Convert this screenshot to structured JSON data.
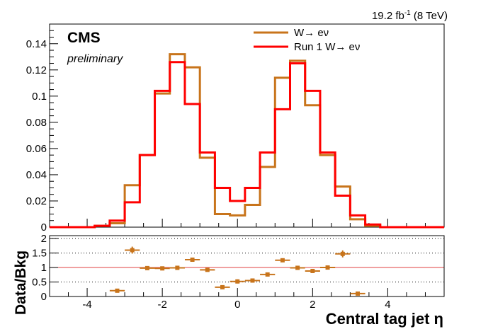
{
  "header": {
    "lumi_prefix": "19.2 fb",
    "lumi_exp": "-1",
    "lumi_suffix": " (8 TeV)"
  },
  "branding": {
    "experiment": "CMS",
    "status": "preliminary"
  },
  "colors": {
    "series_orange": "#c8741b",
    "series_red": "#ff0000",
    "ratio_line": "#e04040",
    "markers": "#c8741b"
  },
  "chart_data": [
    {
      "type": "line",
      "title": "",
      "xlabel": "",
      "ylabel": "",
      "xlim": [
        -5.0,
        5.5
      ],
      "ylim": [
        0,
        0.155
      ],
      "x_ticks": [
        -4,
        -2,
        0,
        2,
        4
      ],
      "y_ticks": [
        0,
        0.02,
        0.04,
        0.06,
        0.08,
        0.1,
        0.12,
        0.14
      ],
      "y_tick_labels": [
        "0",
        "0.02",
        "0.04",
        "0.06",
        "0.08",
        "0.1",
        "0.12",
        "0.14"
      ],
      "grid": false,
      "legend_position": "top-right",
      "bin_edges": [
        -5.0,
        -4.6,
        -4.2,
        -3.8,
        -3.4,
        -3.0,
        -2.6,
        -2.2,
        -1.8,
        -1.4,
        -1.0,
        -0.6,
        -0.2,
        0.2,
        0.6,
        1.0,
        1.4,
        1.8,
        2.2,
        2.6,
        3.0,
        3.4,
        3.8,
        4.2,
        4.6,
        5.0,
        5.5
      ],
      "series": [
        {
          "name": "W→ eν",
          "style": "step",
          "values": [
            0,
            0,
            0,
            0.001,
            0.003,
            0.032,
            0.055,
            0.102,
            0.132,
            0.122,
            0.053,
            0.01,
            0.009,
            0.017,
            0.046,
            0.114,
            0.127,
            0.093,
            0.055,
            0.031,
            0.006,
            0.001,
            0,
            0,
            0,
            0
          ]
        },
        {
          "name": "Run 1 W→ eν",
          "style": "step",
          "values": [
            0,
            0,
            0,
            0.001,
            0.005,
            0.019,
            0.055,
            0.104,
            0.126,
            0.094,
            0.057,
            0.03,
            0.02,
            0.03,
            0.057,
            0.09,
            0.125,
            0.104,
            0.057,
            0.024,
            0.009,
            0.002,
            0,
            0,
            0,
            0
          ]
        }
      ]
    },
    {
      "type": "scatter",
      "title": "",
      "xlabel": "Central tag jet η",
      "ylabel": "Data/Bkg",
      "xlim": [
        -5.0,
        5.5
      ],
      "ylim": [
        0,
        2.1
      ],
      "x_ticks": [
        -4,
        -2,
        0,
        2,
        4
      ],
      "x_tick_labels": [
        "-4",
        "-2",
        "0",
        "2",
        "4"
      ],
      "y_ticks": [
        0,
        0.5,
        1,
        1.5,
        2
      ],
      "y_tick_labels": [
        "0",
        "0.5",
        "1",
        "1.5",
        "2"
      ],
      "reference_lines": [
        0.5,
        1.0,
        1.5,
        2.0
      ],
      "points": [
        {
          "x": -3.2,
          "y": 0.2,
          "xerr": 0.2,
          "yerr": 0.05
        },
        {
          "x": -2.8,
          "y": 1.6,
          "xerr": 0.2,
          "yerr": 0.12
        },
        {
          "x": -2.4,
          "y": 0.98,
          "xerr": 0.2,
          "yerr": 0.05
        },
        {
          "x": -2.0,
          "y": 0.97,
          "xerr": 0.2,
          "yerr": 0.04
        },
        {
          "x": -1.6,
          "y": 0.99,
          "xerr": 0.2,
          "yerr": 0.04
        },
        {
          "x": -1.2,
          "y": 1.27,
          "xerr": 0.2,
          "yerr": 0.05
        },
        {
          "x": -0.8,
          "y": 0.92,
          "xerr": 0.2,
          "yerr": 0.05
        },
        {
          "x": -0.4,
          "y": 0.32,
          "xerr": 0.2,
          "yerr": 0.05
        },
        {
          "x": 0.0,
          "y": 0.52,
          "xerr": 0.2,
          "yerr": 0.07
        },
        {
          "x": 0.4,
          "y": 0.55,
          "xerr": 0.2,
          "yerr": 0.05
        },
        {
          "x": 0.8,
          "y": 0.76,
          "xerr": 0.2,
          "yerr": 0.04
        },
        {
          "x": 1.2,
          "y": 1.25,
          "xerr": 0.2,
          "yerr": 0.04
        },
        {
          "x": 1.6,
          "y": 0.99,
          "xerr": 0.2,
          "yerr": 0.04
        },
        {
          "x": 2.0,
          "y": 0.88,
          "xerr": 0.2,
          "yerr": 0.04
        },
        {
          "x": 2.4,
          "y": 1.0,
          "xerr": 0.2,
          "yerr": 0.05
        },
        {
          "x": 2.8,
          "y": 1.47,
          "xerr": 0.2,
          "yerr": 0.12
        },
        {
          "x": 3.2,
          "y": 0.1,
          "xerr": 0.2,
          "yerr": 0.04
        }
      ]
    }
  ]
}
